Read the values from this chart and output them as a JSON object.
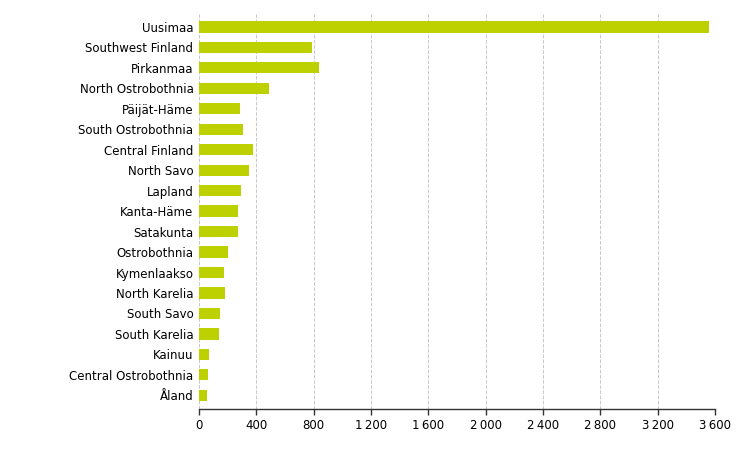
{
  "regions": [
    "Uusimaa",
    "Southwest Finland",
    "Pirkanmaa",
    "North Ostrobothnia",
    "Päijät-Häme",
    "South Ostrobothnia",
    "Central Finland",
    "North Savo",
    "Lapland",
    "Kanta-Häme",
    "Satakunta",
    "Ostrobothnia",
    "Kymenlaakso",
    "North Karelia",
    "South Savo",
    "South Karelia",
    "Kainuu",
    "Central Ostrobothnia",
    "Åland"
  ],
  "values": [
    3560,
    790,
    840,
    490,
    285,
    310,
    380,
    350,
    290,
    270,
    275,
    205,
    175,
    180,
    145,
    140,
    70,
    65,
    55
  ],
  "bar_color": "#bdd000",
  "background_color": "#ffffff",
  "grid_color": "#c8c8c8",
  "xlim": [
    0,
    3600
  ],
  "xticks": [
    0,
    400,
    800,
    1200,
    1600,
    2000,
    2400,
    2800,
    3200,
    3600
  ],
  "xtick_labels": [
    "0",
    "400",
    "800",
    "1 200",
    "1 600",
    "2 000",
    "2 400",
    "2 800",
    "3 200",
    "3 600"
  ],
  "tick_fontsize": 8.5,
  "label_fontsize": 8.5,
  "bar_height": 0.55
}
